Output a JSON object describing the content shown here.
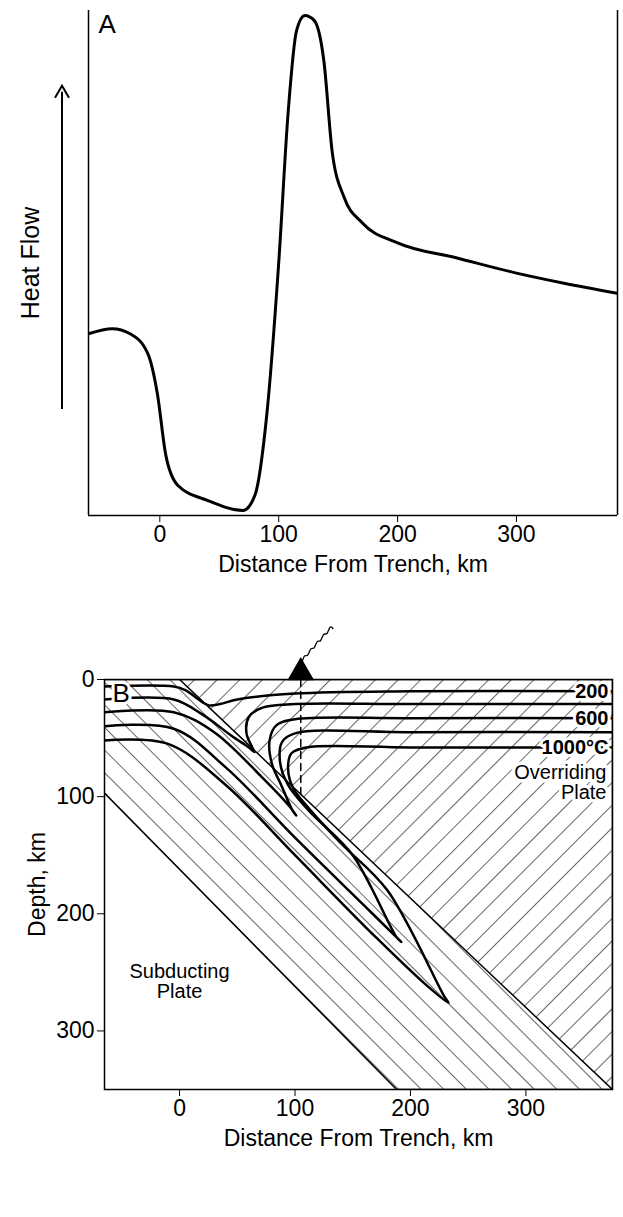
{
  "chart_data": [
    {
      "type": "line",
      "title": "A",
      "xlabel": "Distance From Trench, km",
      "ylabel": "Heat Flow",
      "xlim": [
        -60,
        385
      ],
      "xticks": [
        0,
        100,
        200,
        300
      ],
      "ylim": [
        0,
        100
      ],
      "tick_labels": "x",
      "x": [
        -60,
        -40,
        -25,
        -10,
        -2,
        5,
        15,
        40,
        70,
        80,
        90,
        100,
        108,
        115,
        122,
        130,
        138,
        145,
        155,
        170,
        200,
        250,
        300,
        340,
        385
      ],
      "values": [
        36,
        37,
        36,
        32,
        24,
        12,
        6,
        3,
        1,
        4,
        20,
        50,
        80,
        96,
        99,
        98,
        90,
        72,
        63,
        58,
        54,
        51,
        48,
        46,
        44
      ],
      "color": "#000000"
    },
    {
      "type": "contour",
      "title": "B",
      "xlabel": "Distance From Trench, km",
      "ylabel": "Depth, km",
      "xlim": [
        -65,
        375
      ],
      "xticks": [
        0,
        100,
        200,
        300
      ],
      "ylim": [
        0,
        350
      ],
      "yticks": [
        0,
        100,
        200,
        300
      ],
      "color": "#000000",
      "series": [
        {
          "name": "200",
          "x": [
            -65,
            -5,
            5,
            15,
            25,
            35,
            50,
            100,
            200,
            375
          ],
          "y": [
            6,
            6,
            9,
            16,
            22,
            21,
            17,
            12,
            10,
            10
          ]
        },
        {
          "x": [
            -65,
            -5,
            20,
            45,
            60,
            65,
            63,
            58,
            60,
            72,
            100,
            200,
            375
          ],
          "y": [
            17,
            17,
            30,
            48,
            58,
            62,
            58,
            46,
            32,
            24,
            21,
            21,
            21
          ]
        },
        {
          "name": "600",
          "x": [
            -65,
            -5,
            30,
            70,
            95,
            101,
            98,
            88,
            80,
            78,
            84,
            100,
            200,
            375
          ],
          "y": [
            28,
            28,
            45,
            82,
            108,
            116,
            112,
            90,
            72,
            52,
            39,
            34,
            33,
            33
          ]
        },
        {
          "x": [
            -65,
            -5,
            40,
            100,
            160,
            192,
            188,
            150,
            112,
            94,
            87,
            89,
            100,
            200,
            375
          ],
          "y": [
            40,
            42,
            75,
            135,
            193,
            224,
            220,
            150,
            112,
            90,
            70,
            53,
            46,
            45,
            45
          ]
        },
        {
          "name": "1000°C",
          "x": [
            -65,
            -10,
            40,
            100,
            170,
            215,
            233,
            229,
            180,
            140,
            112,
            98,
            94,
            97,
            110,
            200,
            375
          ],
          "y": [
            52,
            55,
            90,
            150,
            220,
            262,
            276,
            270,
            180,
            140,
            110,
            92,
            75,
            63,
            58,
            58,
            58
          ]
        }
      ],
      "regions": [
        {
          "name": "Overriding Plate",
          "x": [
            0,
            375,
            375
          ],
          "y": [
            0,
            0,
            350
          ]
        },
        {
          "name": "Subducting Plate",
          "x": [
            -65,
            0,
            375,
            188,
            -65
          ],
          "y": [
            0,
            0,
            350,
            350,
            97
          ]
        }
      ],
      "markers": [
        {
          "x": 105,
          "y": 0,
          "marker": "triangle"
        }
      ],
      "lines": [
        {
          "x": [
            105,
            105
          ],
          "y": [
            0,
            100
          ],
          "line_style": "dashed"
        }
      ]
    }
  ]
}
